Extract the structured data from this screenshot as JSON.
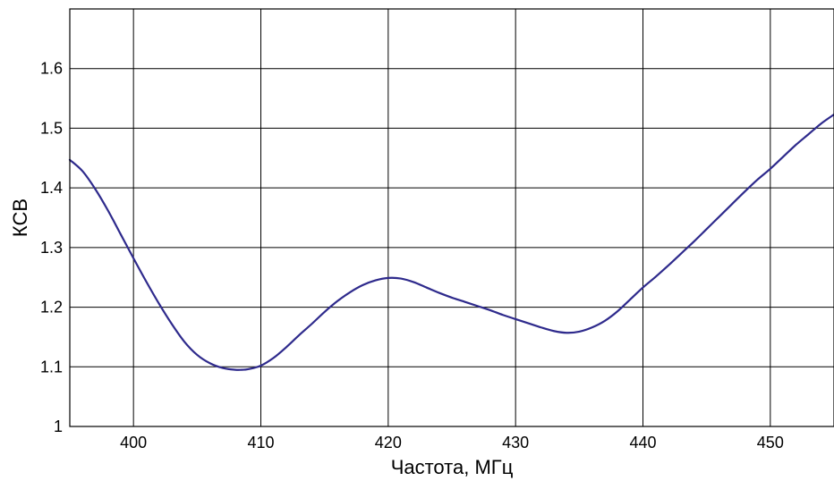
{
  "chart_data": {
    "type": "line",
    "title": "",
    "xlabel": "Частота, МГц",
    "ylabel": "КСВ",
    "xlim": [
      395,
      455
    ],
    "ylim": [
      1.0,
      1.7
    ],
    "xticks": [
      400,
      410,
      420,
      430,
      440,
      450
    ],
    "xtick_labels": [
      "400",
      "410",
      "420",
      "430",
      "440",
      "450"
    ],
    "yticks": [
      1.0,
      1.1,
      1.2,
      1.3,
      1.4,
      1.5,
      1.6
    ],
    "ytick_labels": [
      "1",
      "1.1",
      "1.2",
      "1.3",
      "1.4",
      "1.5",
      "1.6"
    ],
    "grid": true,
    "series": [
      {
        "color": "#2e2a8c",
        "x": [
          395,
          396,
          397,
          398,
          399,
          400,
          401,
          402,
          403,
          404,
          405,
          406,
          407,
          408,
          408.5,
          409,
          410,
          411,
          412,
          413,
          414,
          415,
          416,
          417,
          418,
          419,
          420,
          421,
          422,
          423,
          424,
          425,
          426,
          427,
          428,
          429,
          430,
          431,
          432,
          433,
          434,
          435,
          436,
          437,
          438,
          439,
          440,
          441,
          442,
          443,
          444,
          445,
          446,
          447,
          448,
          449,
          450,
          451,
          452,
          453,
          454,
          455
        ],
        "y": [
          1.447,
          1.428,
          1.398,
          1.362,
          1.322,
          1.282,
          1.243,
          1.206,
          1.172,
          1.142,
          1.12,
          1.106,
          1.098,
          1.095,
          1.095,
          1.096,
          1.102,
          1.115,
          1.133,
          1.153,
          1.172,
          1.192,
          1.21,
          1.225,
          1.237,
          1.245,
          1.249,
          1.248,
          1.242,
          1.233,
          1.224,
          1.216,
          1.209,
          1.202,
          1.195,
          1.187,
          1.18,
          1.173,
          1.166,
          1.16,
          1.157,
          1.159,
          1.166,
          1.177,
          1.193,
          1.213,
          1.233,
          1.251,
          1.27,
          1.29,
          1.31,
          1.331,
          1.352,
          1.373,
          1.394,
          1.414,
          1.432,
          1.452,
          1.472,
          1.49,
          1.508,
          1.523
        ]
      }
    ]
  }
}
